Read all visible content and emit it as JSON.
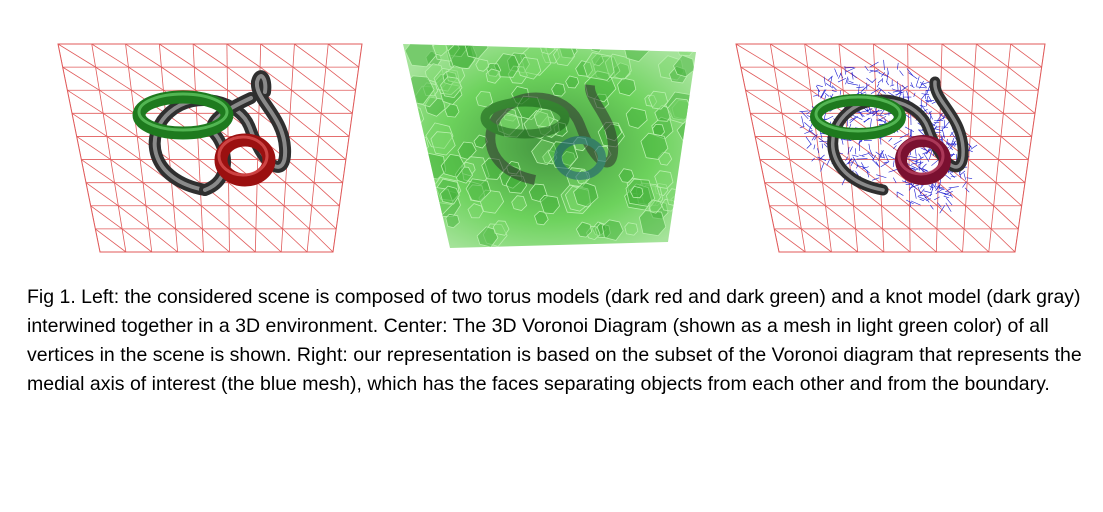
{
  "figure": {
    "caption": "Fig 1. Left: the considered scene is composed of two torus models (dark red and dark green) and a knot model (dark gray) interwined together in a 3D environment. Center: The 3D Voronoi Diagram (shown as a mesh in light green color) of all vertices in the scene is shown. Right: our representation is based on the subset of the Voronoi diagram that represents the medial axis of interest (the blue mesh), which has the faces separating objects from each other and from the boundary.",
    "colors": {
      "boundary_grid": "#e05a5a",
      "torus_red": "#9b1010",
      "torus_green": "#1e7a1e",
      "knot_gray": "#4a4a4a",
      "voronoi_green": "#5ccd4a",
      "medial_axis_blue": "#1a1ad0"
    },
    "panels": [
      {
        "id": "left",
        "content": "scene"
      },
      {
        "id": "center",
        "content": "voronoi-diagram"
      },
      {
        "id": "right",
        "content": "medial-axis"
      }
    ]
  }
}
